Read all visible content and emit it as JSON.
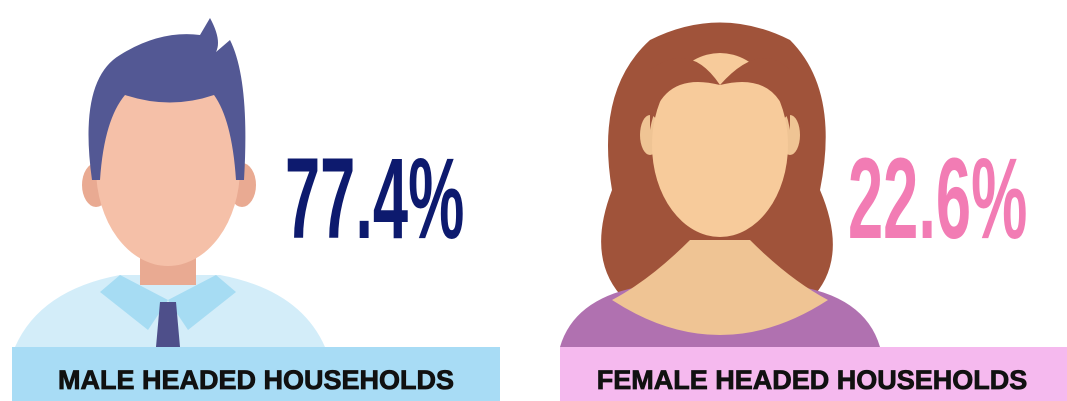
{
  "items": [
    {
      "percent": "77.4%",
      "label": "MALE HEADED HOUSEHOLDS"
    },
    {
      "percent": "22.6%",
      "label": "FEMALE HEADED HOUSEHOLDS"
    }
  ]
}
